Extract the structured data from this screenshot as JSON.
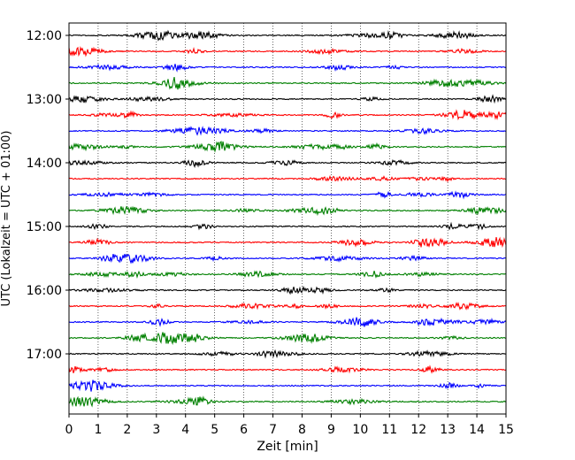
{
  "chart_data": {
    "type": "line",
    "title": "",
    "xlabel": "Zeit  [min]",
    "ylabel": "UTC (Lokalzeit = UTC + 01:00)",
    "x_range": [
      0,
      15
    ],
    "x_ticks": [
      0,
      1,
      2,
      3,
      4,
      5,
      6,
      7,
      8,
      9,
      10,
      11,
      12,
      13,
      14,
      15
    ],
    "x_tick_labels": [
      "0",
      "1",
      "2",
      "3",
      "4",
      "5",
      "6",
      "7",
      "8",
      "9",
      "10",
      "11",
      "12",
      "13",
      "14",
      "15"
    ],
    "y_tick_labels": [
      "12:00",
      "13:00",
      "14:00",
      "15:00",
      "16:00",
      "17:00"
    ],
    "row_start_times": [
      "12:00",
      "12:15",
      "12:30",
      "12:45",
      "13:00",
      "13:15",
      "13:30",
      "13:45",
      "14:00",
      "14:15",
      "14:30",
      "14:45",
      "15:00",
      "15:15",
      "15:30",
      "15:45",
      "16:00",
      "16:15",
      "16:30",
      "16:45",
      "17:00",
      "17:15",
      "17:30",
      "17:45"
    ],
    "row_minutes": 15,
    "grid": "vertical dotted at each minute",
    "trace_colors": [
      "#000000",
      "#ff0000",
      "#0000ff",
      "#008000"
    ]
  }
}
